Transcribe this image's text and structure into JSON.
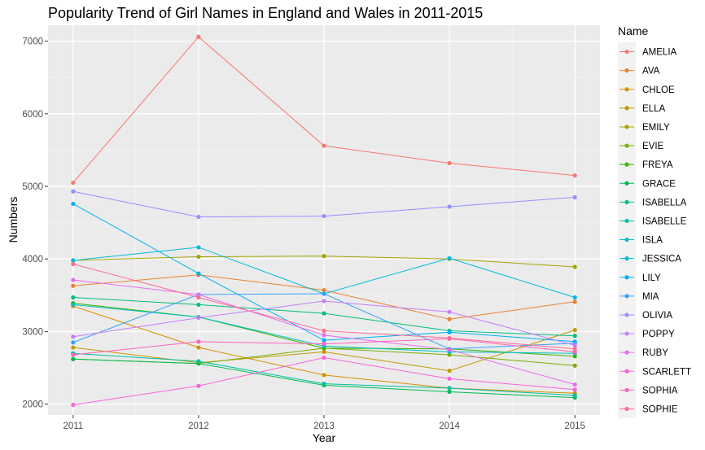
{
  "chart_data": {
    "type": "line",
    "title": "Popularity Trend of Girl Names in England and Wales in 2011-2015",
    "xlabel": "Year",
    "ylabel": "Numbers",
    "x": [
      2011,
      2012,
      2013,
      2014,
      2015
    ],
    "x_tick_labels": [
      "2011",
      "2012",
      "2013",
      "2014",
      "2015"
    ],
    "y_ticks": [
      2000,
      3000,
      4000,
      5000,
      6000,
      7000
    ],
    "y_tick_labels": [
      "2000",
      "3000",
      "4000",
      "5000",
      "6000",
      "7000"
    ],
    "xlim": [
      2010.8,
      2015.2
    ],
    "ylim": [
      1850,
      7220
    ],
    "grid": true,
    "legend_title": "Name",
    "legend_position": "right",
    "series": [
      {
        "name": "AMELIA",
        "color": "#F8766D",
        "values": [
          5050,
          7060,
          5560,
          5320,
          5150
        ]
      },
      {
        "name": "AVA",
        "color": "#EA8331",
        "values": [
          3630,
          3780,
          3570,
          3170,
          3410
        ]
      },
      {
        "name": "CHLOE",
        "color": "#D89000",
        "values": [
          3350,
          2780,
          2400,
          2220,
          2150
        ]
      },
      {
        "name": "ELLA",
        "color": "#C09B00",
        "values": [
          2780,
          2570,
          2720,
          2460,
          3020
        ]
      },
      {
        "name": "EMILY",
        "color": "#A3A500",
        "values": [
          3980,
          4030,
          4040,
          4000,
          3890
        ]
      },
      {
        "name": "EVIE",
        "color": "#7CAE00",
        "values": [
          2620,
          2560,
          2770,
          2680,
          2530
        ]
      },
      {
        "name": "FREYA",
        "color": "#39B600",
        "values": [
          3390,
          3200,
          2770,
          2760,
          2660
        ]
      },
      {
        "name": "GRACE",
        "color": "#00BB4E",
        "values": [
          2620,
          2560,
          2260,
          2170,
          2090
        ]
      },
      {
        "name": "ISABELLA",
        "color": "#00BF7D",
        "values": [
          3470,
          3370,
          3250,
          3010,
          2940
        ]
      },
      {
        "name": "ISABELLE",
        "color": "#00C1A3",
        "values": [
          2700,
          2590,
          2280,
          2220,
          2120
        ]
      },
      {
        "name": "ISLA",
        "color": "#00BFC4",
        "values": [
          3370,
          3200,
          2800,
          2720,
          2700
        ]
      },
      {
        "name": "JESSICA",
        "color": "#00BAE0",
        "values": [
          3980,
          4160,
          3520,
          4010,
          3470
        ]
      },
      {
        "name": "LILY",
        "color": "#00B0F6",
        "values": [
          4760,
          3800,
          2880,
          2990,
          2860
        ]
      },
      {
        "name": "MIA",
        "color": "#35A2FF",
        "values": [
          2850,
          3510,
          3520,
          2760,
          2840
        ]
      },
      {
        "name": "OLIVIA",
        "color": "#9590FF",
        "values": [
          4930,
          4580,
          4590,
          4720,
          4850
        ]
      },
      {
        "name": "POPPY",
        "color": "#C77CFF",
        "values": [
          2930,
          3190,
          3420,
          3270,
          2810
        ]
      },
      {
        "name": "RUBY",
        "color": "#E76BF3",
        "values": [
          3710,
          3510,
          2950,
          2750,
          2270
        ]
      },
      {
        "name": "SCARLETT",
        "color": "#FA62DB",
        "values": [
          1990,
          2250,
          2640,
          2350,
          2200
        ]
      },
      {
        "name": "SOPHIA",
        "color": "#FF62BC",
        "values": [
          2680,
          2860,
          2830,
          2900,
          2720
        ]
      },
      {
        "name": "SOPHIE",
        "color": "#FF6C91",
        "values": [
          3930,
          3470,
          3010,
          2910,
          2760
        ]
      }
    ]
  },
  "colors": {
    "panel_background": "#EBEBEB",
    "grid_major": "#FFFFFF",
    "tick_text": "#4D4D4D",
    "legend_key_background": "#F2F2F2"
  }
}
